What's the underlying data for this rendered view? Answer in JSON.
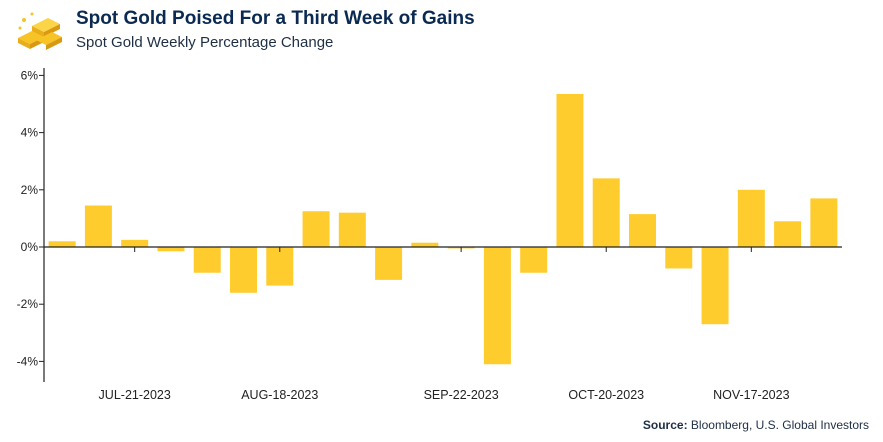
{
  "header": {
    "title": "Spot Gold Poised For a Third Week of Gains",
    "subtitle": "Spot Gold Weekly Percentage Change",
    "logo": "gold-bars-icon"
  },
  "source": {
    "label": "Source:",
    "text": "Bloomberg, U.S. Global Investors"
  },
  "colors": {
    "bar": "#FFCC2E",
    "axis": "#222222",
    "title": "#0b2a52"
  },
  "chart_data": {
    "type": "bar",
    "unit": "%",
    "ylim": [
      -4.5,
      6.3
    ],
    "yticks": [
      -4,
      -2,
      0,
      2,
      4,
      6
    ],
    "ytick_labels": [
      "-4%",
      "-2%",
      "0%",
      "2%",
      "4%",
      "6%"
    ],
    "grid": false,
    "x_labels": [
      {
        "index": 2.5,
        "text": "JUL-21-2023"
      },
      {
        "index": 6.5,
        "text": "AUG-18-2023"
      },
      {
        "index": 11.5,
        "text": "SEP-22-2023"
      },
      {
        "index": 15.5,
        "text": "OCT-20-2023"
      },
      {
        "index": 19.5,
        "text": "NOV-17-2023"
      }
    ],
    "values": [
      0.2,
      1.45,
      0.25,
      -0.15,
      -0.9,
      -1.6,
      -1.35,
      1.25,
      1.2,
      -1.15,
      0.15,
      -0.05,
      -4.1,
      -0.9,
      5.35,
      2.4,
      1.15,
      -0.75,
      -2.7,
      2.0,
      0.9,
      1.7
    ]
  }
}
